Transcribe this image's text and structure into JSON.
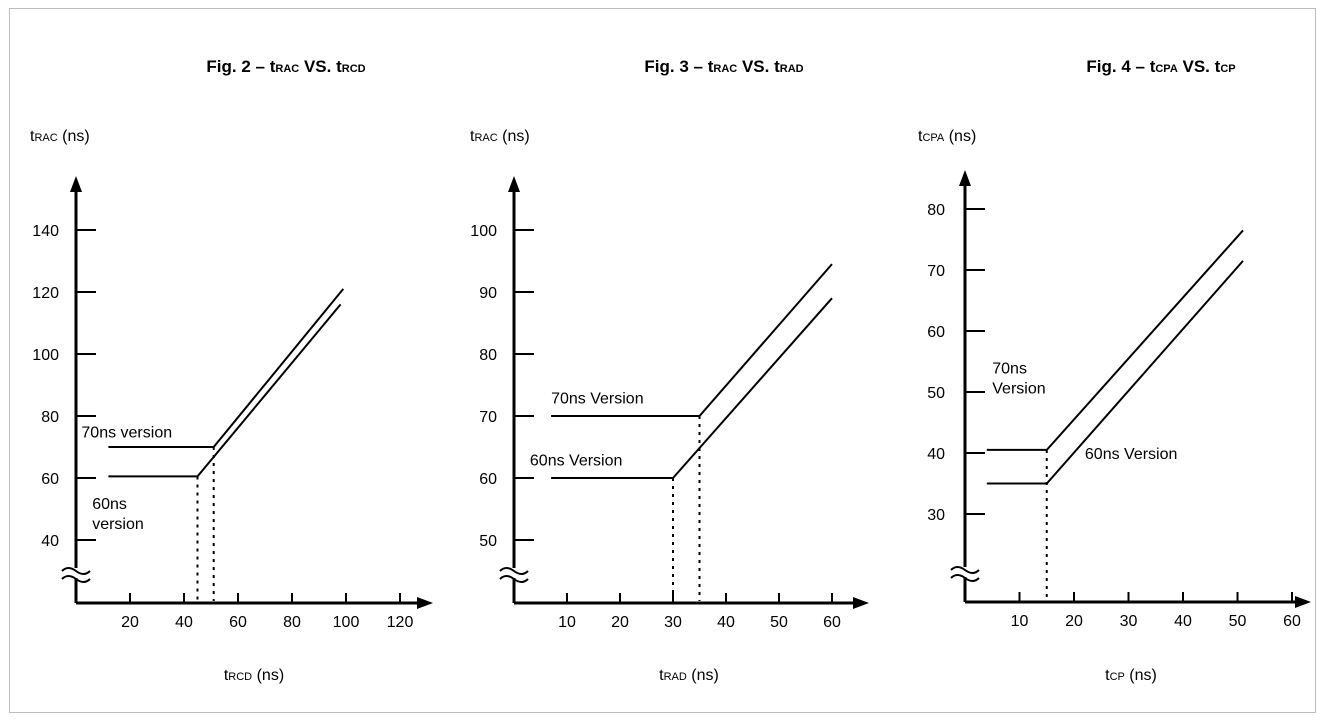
{
  "chart_data": [
    {
      "type": "line",
      "title": {
        "prefix": "Fig. 2 – ",
        "y_sym": "t",
        "y_sub": "RAC",
        "vs": " VS. ",
        "x_sym": "t",
        "x_sub": "RCD"
      },
      "ylabel": {
        "sym": "t",
        "sub": "RAC",
        "unit": " (ns)"
      },
      "xlabel": {
        "sym": "t",
        "sub": "RCD",
        "unit": " (ns)"
      },
      "x_ticks": [
        20,
        40,
        60,
        80,
        100,
        120
      ],
      "y_ticks": [
        40,
        60,
        80,
        100,
        120,
        140
      ],
      "xlim": [
        0,
        125
      ],
      "ylim": [
        20,
        155
      ],
      "axis_break": true,
      "series": [
        {
          "name": "70ns version",
          "x": [
            12,
            51,
            99
          ],
          "y": [
            70,
            70,
            121
          ]
        },
        {
          "name": "60ns version",
          "x": [
            12,
            45,
            98
          ],
          "y": [
            60.5,
            60.5,
            116
          ]
        }
      ],
      "dotted_markers": [
        {
          "x": 45,
          "y_top": 60.5
        },
        {
          "x": 51,
          "y_top": 70
        }
      ],
      "annotations": [
        {
          "text": [
            "70ns version"
          ],
          "x": 2,
          "y": 73
        },
        {
          "text": [
            "60ns",
            "version"
          ],
          "x": 6,
          "y": 50
        }
      ]
    },
    {
      "type": "line",
      "title": {
        "prefix": "Fig. 3 – ",
        "y_sym": "t",
        "y_sub": "RAC",
        "vs": " VS. ",
        "x_sym": "t",
        "x_sub": "RAD"
      },
      "ylabel": {
        "sym": "t",
        "sub": "RAC",
        "unit": " (ns)"
      },
      "xlabel": {
        "sym": "t",
        "sub": "RAD",
        "unit": " (ns)"
      },
      "x_ticks": [
        10,
        20,
        30,
        40,
        50,
        60
      ],
      "y_ticks": [
        50,
        60,
        70,
        80,
        90,
        100
      ],
      "xlim": [
        0,
        64
      ],
      "ylim": [
        40,
        108
      ],
      "axis_break": true,
      "series": [
        {
          "name": "70ns Version",
          "x": [
            7,
            35,
            60
          ],
          "y": [
            70,
            70,
            94.5
          ]
        },
        {
          "name": "60ns Version",
          "x": [
            7,
            30,
            60
          ],
          "y": [
            60,
            60,
            89
          ]
        }
      ],
      "dotted_markers": [
        {
          "x": 30,
          "y_top": 60
        },
        {
          "x": 35,
          "y_top": 70
        }
      ],
      "annotations": [
        {
          "text": [
            "70ns Version"
          ],
          "x": 7,
          "y": 72
        },
        {
          "text": [
            "60ns Version"
          ],
          "x": 3,
          "y": 62
        }
      ]
    },
    {
      "type": "line",
      "title": {
        "prefix": "Fig. 4 – ",
        "y_sym": "t",
        "y_sub": "CPA",
        "vs": " VS. ",
        "x_sym": "t",
        "x_sub": "CP"
      },
      "ylabel": {
        "sym": "t",
        "sub": "CPA",
        "unit": " (ns)"
      },
      "xlabel": {
        "sym": "t",
        "sub": "CP",
        "unit": " (ns)"
      },
      "x_ticks": [
        10,
        20,
        30,
        40,
        50,
        60
      ],
      "y_ticks": [
        30,
        40,
        50,
        60,
        70,
        80
      ],
      "xlim": [
        0,
        64
      ],
      "ylim": [
        15,
        85
      ],
      "axis_break": true,
      "series": [
        {
          "name": "70ns Version",
          "x": [
            4,
            15,
            51
          ],
          "y": [
            40.5,
            40.5,
            76.5
          ]
        },
        {
          "name": "60ns Version",
          "x": [
            4,
            15,
            51
          ],
          "y": [
            35,
            35,
            71.5
          ]
        }
      ],
      "dotted_markers": [
        {
          "x": 15,
          "y_top": 40.5
        }
      ],
      "annotations": [
        {
          "text": [
            "70ns",
            "Version"
          ],
          "x": 5,
          "y": 53
        },
        {
          "text": [
            "60ns Version"
          ],
          "x": 22,
          "y": 39
        }
      ]
    }
  ]
}
